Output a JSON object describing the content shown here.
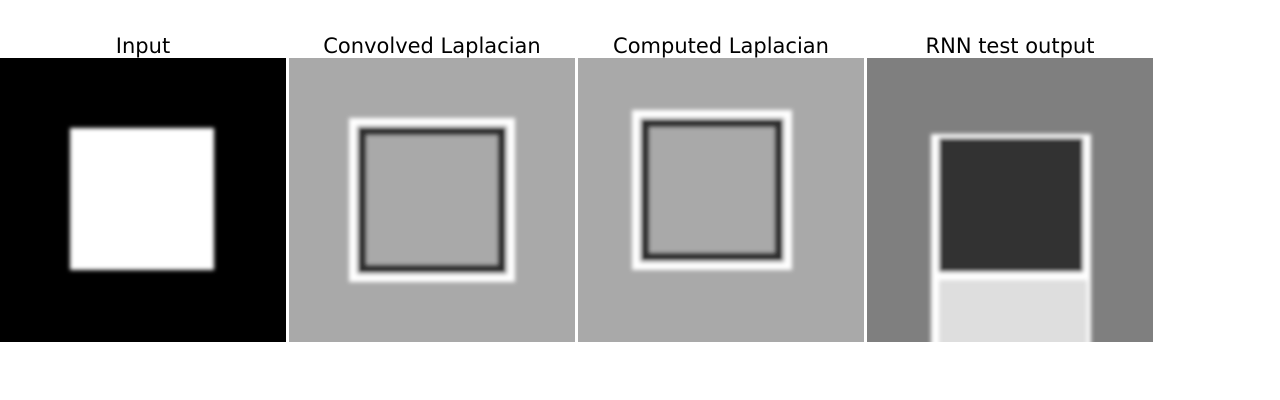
{
  "panels": [
    {
      "title": "Input"
    },
    {
      "title": "Convolved Laplacian"
    },
    {
      "title": "Computed Laplacian"
    },
    {
      "title": "RNN test output"
    }
  ],
  "colors": {
    "background": "#ffffff",
    "black": "#000000",
    "white": "#ffffff",
    "laplacian_bg": "#a9a9a9",
    "rnn_bg": "#7f7f7f",
    "rnn_dark": "#333333",
    "rnn_light": "#dedede"
  }
}
